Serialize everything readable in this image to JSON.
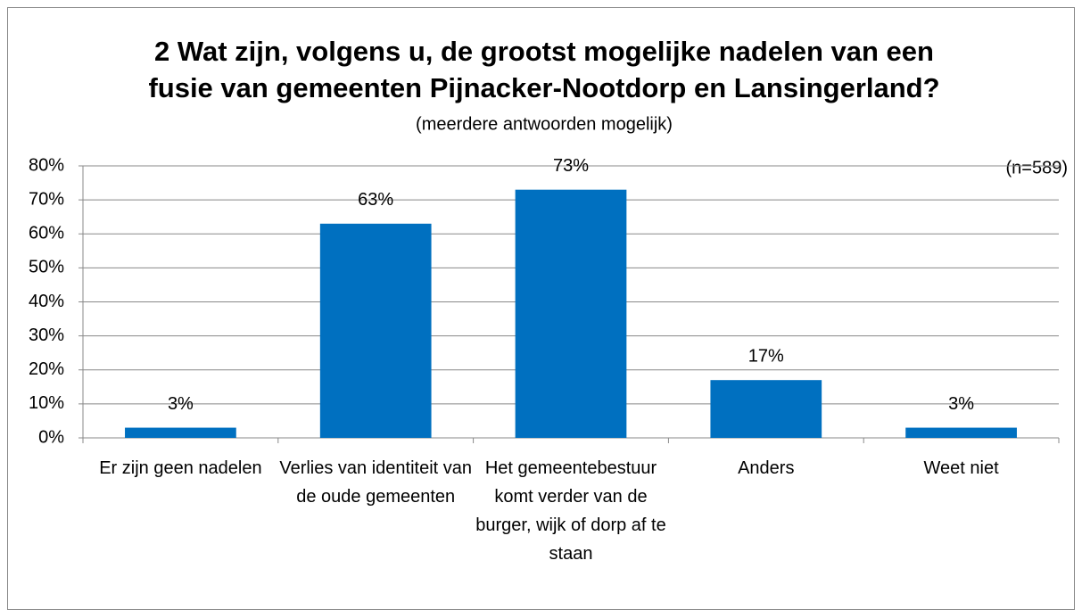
{
  "chart_data": {
    "type": "bar",
    "title": [
      "2 Wat zijn, volgens u, de grootst mogelijke nadelen van een",
      "fusie van gemeenten Pijnacker-Nootdorp en Lansingerland?"
    ],
    "subtitle": "(meerdere antwoorden mogelijk)",
    "annotation": "(n=589)",
    "categories": [
      "Er zijn geen nadelen",
      "Verlies van identiteit van de oude gemeenten",
      "Het gemeentebestuur komt verder van de burger, wijk of dorp af te staan",
      "Anders",
      "Weet niet"
    ],
    "values": [
      3,
      63,
      73,
      17,
      3
    ],
    "value_labels": [
      "3%",
      "63%",
      "73%",
      "17%",
      "3%"
    ],
    "color": "#0070c0",
    "ylim": [
      0,
      80
    ],
    "yticks": [
      {
        "value": 0,
        "label": "0%"
      },
      {
        "value": 10,
        "label": "10%"
      },
      {
        "value": 20,
        "label": "20%"
      },
      {
        "value": 30,
        "label": "30%"
      },
      {
        "value": 40,
        "label": "40%"
      },
      {
        "value": 50,
        "label": "50%"
      },
      {
        "value": 60,
        "label": "60%"
      },
      {
        "value": 70,
        "label": "70%"
      },
      {
        "value": 80,
        "label": "80%"
      }
    ],
    "grid": true
  }
}
